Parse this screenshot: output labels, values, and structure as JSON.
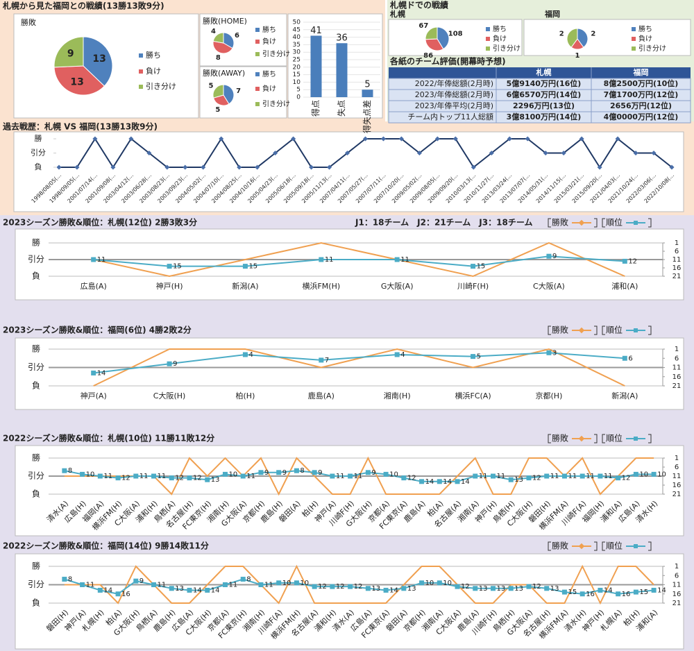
{
  "sections": {
    "left_title": "札幌から見た福岡との戦績(13勝13敗9分)",
    "right_title": "札幌ドでの戦績"
  },
  "table": {
    "title": "各紙のチーム評価(開幕時予想)",
    "header": [
      "札幌",
      "福岡"
    ],
    "rows": [
      [
        "2022/年俸総額(2月時)",
        "5億9140万円(16位)",
        "8億2500万円(10位)"
      ],
      [
        "2023/年俸総額(2月時)",
        "6億6570万円(14位)",
        "7億1700万円(12位)"
      ],
      [
        "2023/年俸平均(2月時)",
        "2296万円(13位)",
        "2656万円(12位)"
      ],
      [
        "チーム内トップ11人総額",
        "3億8100万円(14位)",
        "4億0000万円(12位)"
      ]
    ]
  },
  "chart_data": [
    {
      "type": "pie",
      "title": "勝敗",
      "categories": [
        "勝ち",
        "負け",
        "引き分け"
      ],
      "values": [
        13,
        13,
        9
      ],
      "colors": [
        "#4f81bd",
        "#e06060",
        "#9bbb59"
      ]
    },
    {
      "type": "pie",
      "title": "勝敗(HOME)",
      "categories": [
        "勝ち",
        "負け",
        "引き分け"
      ],
      "values": [
        6,
        8,
        4
      ],
      "colors": [
        "#4f81bd",
        "#e06060",
        "#9bbb59"
      ]
    },
    {
      "type": "pie",
      "title": "勝敗(AWAY)",
      "categories": [
        "勝ち",
        "負け",
        "引き分け"
      ],
      "values": [
        7,
        5,
        5
      ],
      "colors": [
        "#4f81bd",
        "#e06060",
        "#9bbb59"
      ]
    },
    {
      "type": "bar",
      "categories": [
        "得点",
        "失点",
        "得失点差"
      ],
      "values": [
        41,
        36,
        5
      ],
      "color": "#4a7ebb",
      "ylim": [
        0,
        50
      ],
      "yticks": [
        0,
        5,
        10,
        15,
        20,
        25,
        30,
        35,
        40,
        45,
        50
      ],
      "grid": true
    },
    {
      "type": "pie",
      "title": "札幌",
      "categories": [
        "勝ち",
        "負け",
        "引き分け"
      ],
      "values": [
        108,
        86,
        67
      ],
      "colors": [
        "#4f81bd",
        "#e06060",
        "#9bbb59"
      ]
    },
    {
      "type": "pie",
      "title": "福岡",
      "categories": [
        "勝ち",
        "負け",
        "引き分け"
      ],
      "values": [
        2,
        1,
        2
      ],
      "colors": [
        "#4f81bd",
        "#e06060",
        "#9bbb59"
      ]
    },
    {
      "type": "history",
      "title": "過去戦歴：札幌 VS 福岡(13勝13敗9分)",
      "color": "#1f3864",
      "categories": [
        "1998/08/05(...",
        "1998/09/05(...",
        "2001/07/14(...",
        "2001/09/08(...",
        "2003/04/12(...",
        "2003/06/28(...",
        "2003/08/23(...",
        "2003/09/23(...",
        "2004/05/02(...",
        "2004/07/10(...",
        "2004/08/25(...",
        "2004/10/16(...",
        "2005/04/23(...",
        "2005/06/18(...",
        "2005/09/18(...",
        "2005/11/13(...",
        "2007/04/11(...",
        "2007/05/27(...",
        "2007/07/11(...",
        "2007/10/20(...",
        "2009/05/02(...",
        "2009/08/05(...",
        "2009/09/20(...",
        "2010/03/13(...",
        "2010/11/27(...",
        "2013/03/24(...",
        "2013/07/07(...",
        "2014/05/31(...",
        "2014/11/15(...",
        "2015/03/21(...",
        "2015/09/20(...",
        "2021/04/03(...",
        "2021/10/24(...",
        "2022/03/06(...",
        "2022/10/08(..."
      ],
      "values": [
        -1,
        -1,
        1,
        -1,
        1,
        0,
        -1,
        -1,
        -1,
        1,
        -1,
        -1,
        0,
        1,
        -1,
        -1,
        0,
        1,
        1,
        1,
        0,
        1,
        1,
        -1,
        0,
        1,
        1,
        0,
        0,
        1,
        -1,
        1,
        0,
        0,
        -1
      ],
      "ylim": [
        -1,
        1
      ],
      "yticks": [
        {
          "value": 1,
          "label": "勝"
        },
        {
          "value": 0,
          "label": "引分"
        },
        {
          "value": -1,
          "label": "負"
        }
      ]
    },
    {
      "type": "combo",
      "title": "2023シーズン勝敗&順位：札幌(12位) 2勝3敗3分",
      "note": "J1：18チーム　J2：21チーム　J3：18チーム",
      "categories": [
        "広島(A)",
        "神戸(H)",
        "新潟(A)",
        "横浜FM(H)",
        "G大阪(A)",
        "川崎F(H)",
        "C大阪(A)",
        "浦和(A)"
      ],
      "series": [
        {
          "name": "勝敗",
          "color": "#f0a050",
          "values": [
            0,
            -1,
            0,
            1,
            0,
            -1,
            1,
            -1
          ]
        },
        {
          "name": "順位",
          "color": "#4bacc6",
          "axis": "y2",
          "values": [
            11,
            15,
            15,
            11,
            11,
            15,
            9,
            12
          ]
        }
      ],
      "ylim": [
        -1,
        1
      ],
      "yticks": [
        {
          "value": 1,
          "label": "勝"
        },
        {
          "value": 0,
          "label": "引分"
        },
        {
          "value": -1,
          "label": "負"
        }
      ],
      "y2lim": [
        21,
        1
      ],
      "y2ticks": [
        1,
        6,
        11,
        16,
        21
      ],
      "grid": true
    },
    {
      "type": "combo",
      "title": "2023シーズン勝敗&順位：福岡(6位) 4勝2敗2分",
      "categories": [
        "神戸(A)",
        "C大阪(H)",
        "柏(H)",
        "鹿島(A)",
        "湘南(H)",
        "横浜FC(A)",
        "京都(H)",
        "新潟(A)"
      ],
      "series": [
        {
          "name": "勝敗",
          "color": "#f0a050",
          "values": [
            -1,
            1,
            1,
            0,
            1,
            0,
            1,
            -1
          ]
        },
        {
          "name": "順位",
          "color": "#4bacc6",
          "axis": "y2",
          "values": [
            14,
            9,
            4,
            7,
            4,
            5,
            3,
            6
          ]
        }
      ],
      "ylim": [
        -1,
        1
      ],
      "yticks": [
        {
          "value": 1,
          "label": "勝"
        },
        {
          "value": 0,
          "label": "引分"
        },
        {
          "value": -1,
          "label": "負"
        }
      ],
      "y2lim": [
        21,
        1
      ],
      "y2ticks": [
        1,
        6,
        11,
        16,
        21
      ],
      "grid": true
    },
    {
      "type": "combo",
      "title": "2022シーズン勝敗&順位：札幌(10位) 11勝11敗12分",
      "categories": [
        "清水(A)",
        "広島(H)",
        "福岡(A)",
        "横浜FM(H)",
        "C大阪(A)",
        "浦和(H)",
        "鳥栖(A)",
        "名古屋(H)",
        "FC東京(H)",
        "湘南(H)",
        "G大阪(A)",
        "京都(H)",
        "鹿島(H)",
        "磐田(A)",
        "柏(H)",
        "神戸(A)",
        "川崎F(H)",
        "G大阪(H)",
        "京都(A)",
        "FC東京(A)",
        "鹿島(A)",
        "柏(A)",
        "名古屋(A)",
        "湘南(A)",
        "神戸(H)",
        "鳥栖(H)",
        "C大阪(H)",
        "磐田(H)",
        "横浜FM(A)",
        "川崎F(A)",
        "福岡(H)",
        "浦和(A)",
        "広島(A)",
        "清水(H)"
      ],
      "series": [
        {
          "name": "勝敗",
          "color": "#f0a050",
          "values": [
            0,
            0,
            0,
            0,
            0,
            0,
            -1,
            1,
            0,
            1,
            0,
            1,
            -1,
            1,
            0,
            -1,
            -1,
            1,
            -1,
            -1,
            -1,
            -1,
            0,
            1,
            -1,
            -1,
            1,
            1,
            0,
            1,
            -1,
            0,
            1,
            1
          ]
        },
        {
          "name": "順位",
          "color": "#4bacc6",
          "axis": "y2",
          "values": [
            8,
            10,
            11,
            12,
            11,
            11,
            12,
            12,
            13,
            10,
            11,
            9,
            9,
            8,
            9,
            11,
            11,
            9,
            10,
            12,
            14,
            14,
            14,
            11,
            11,
            13,
            12,
            11,
            11,
            11,
            11,
            12,
            10,
            10
          ]
        }
      ],
      "ylim": [
        -1,
        1
      ],
      "yticks": [
        {
          "value": 1,
          "label": "勝"
        },
        {
          "value": 0,
          "label": "引分"
        },
        {
          "value": -1,
          "label": "負"
        }
      ],
      "y2lim": [
        21,
        1
      ],
      "y2ticks": [
        1,
        6,
        11,
        16,
        21
      ],
      "grid": true
    },
    {
      "type": "combo",
      "title": "2022シーズン勝敗&順位：福岡(14位) 9勝14敗11分",
      "categories": [
        "磐田(H)",
        "神戸(A)",
        "札幌(H)",
        "柏(A)",
        "G大阪(H)",
        "鳥栖(A)",
        "鹿島(H)",
        "広島(A)",
        "C大阪(H)",
        "京都(A)",
        "FC東京(H)",
        "湘南(H)",
        "川崎F(A)",
        "横浜FM(H)",
        "名古屋(A)",
        "浦和(H)",
        "清水(A)",
        "広島(A)",
        "FC東京(A)",
        "磐田(A)",
        "京都(H)",
        "湘南(A)",
        "C大阪(A)",
        "鹿島(A)",
        "川崎F(H)",
        "鳥栖(H)",
        "G大阪(A)",
        "名古屋(H)",
        "横浜FM(A)",
        "清水(H)",
        "神戸(H)",
        "札幌(A)",
        "柏(H)",
        "浦和(A)"
      ],
      "series": [
        {
          "name": "勝敗",
          "color": "#f0a050",
          "values": [
            0,
            0,
            0,
            -1,
            1,
            0,
            -1,
            -1,
            0,
            1,
            1,
            0,
            -1,
            1,
            -1,
            -1,
            -1,
            -1,
            -1,
            0,
            1,
            1,
            0,
            -1,
            -1,
            0,
            0,
            -1,
            -1,
            1,
            -1,
            1,
            1,
            0
          ]
        },
        {
          "name": "順位",
          "color": "#4bacc6",
          "axis": "y2",
          "values": [
            8,
            11,
            14,
            16,
            9,
            11,
            13,
            14,
            14,
            11,
            8,
            11,
            10,
            10,
            12,
            12,
            12,
            13,
            14,
            13,
            10,
            10,
            12,
            13,
            13,
            13,
            12,
            13,
            15,
            16,
            14,
            16,
            15,
            14
          ]
        }
      ],
      "ylim": [
        -1,
        1
      ],
      "yticks": [
        {
          "value": 1,
          "label": "勝"
        },
        {
          "value": 0,
          "label": "引分"
        },
        {
          "value": -1,
          "label": "負"
        }
      ],
      "y2lim": [
        21,
        1
      ],
      "y2ticks": [
        1,
        6,
        11,
        16,
        21
      ],
      "grid": true
    }
  ]
}
